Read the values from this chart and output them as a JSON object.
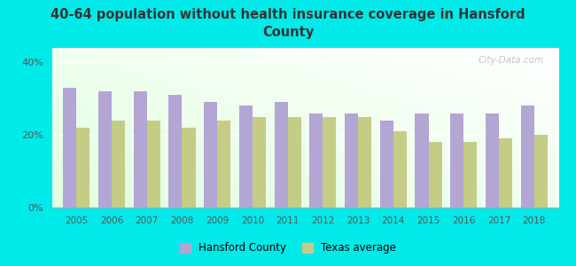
{
  "title": "40-64 population without health insurance coverage in Hansford\nCounty",
  "years": [
    2005,
    2006,
    2007,
    2008,
    2009,
    2010,
    2011,
    2012,
    2013,
    2014,
    2015,
    2016,
    2017,
    2018
  ],
  "hansford": [
    33,
    32,
    32,
    31,
    29,
    28,
    29,
    26,
    26,
    24,
    26,
    26,
    26,
    28
  ],
  "texas": [
    22,
    24,
    24,
    22,
    24,
    25,
    25,
    25,
    25,
    21,
    18,
    18,
    19,
    20
  ],
  "hansford_color": "#b3a5d4",
  "texas_color": "#c5cc85",
  "ylim": [
    0,
    44
  ],
  "yticks": [
    0,
    20,
    40
  ],
  "ytick_labels": [
    "0%",
    "20%",
    "40%"
  ],
  "bar_width": 0.38,
  "legend_hansford": "Hansford County",
  "legend_texas": "Texas average",
  "outer_bg": "#00eaea",
  "plot_bg": "#eefff0",
  "title_color": "#333333",
  "tick_color": "#555555",
  "watermark": "City-Data.com"
}
